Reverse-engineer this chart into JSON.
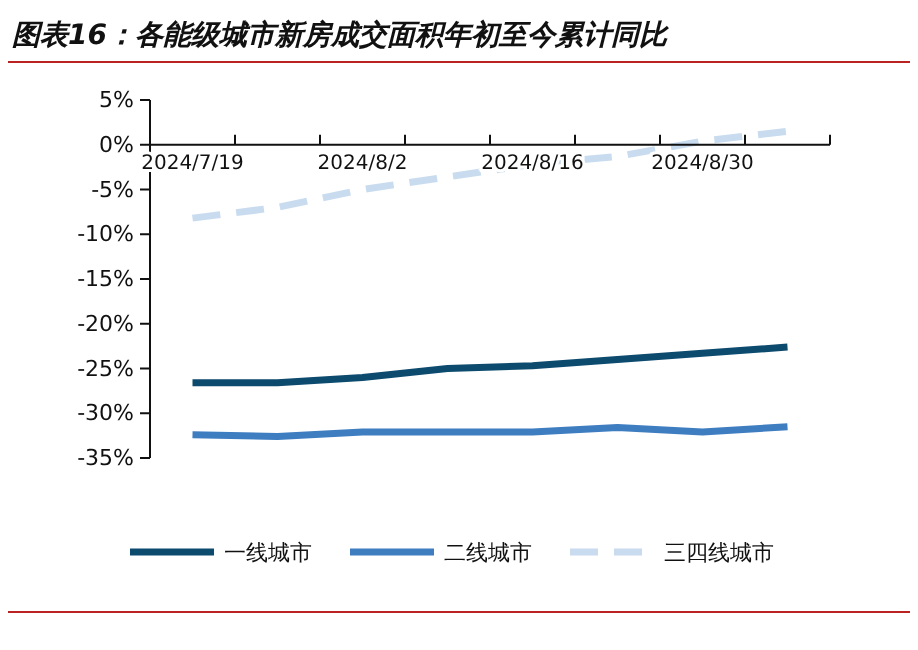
{
  "chart_data": {
    "type": "line",
    "title": "图表16：各能级城市新房成交面积年初至今累计同比",
    "categories": [
      "2024/7/19",
      null,
      "2024/8/2",
      null,
      "2024/8/16",
      null,
      "2024/8/30",
      null
    ],
    "series": [
      {
        "name": "一线城市",
        "color": "#0c4a6e",
        "line_style": "solid",
        "values": [
          -26.6,
          -26.6,
          -26.0,
          -25.0,
          -24.7,
          -24.0,
          -23.3,
          -22.6
        ]
      },
      {
        "name": "二线城市",
        "color": "#3f7dc1",
        "line_style": "solid",
        "values": [
          -32.4,
          -32.6,
          -32.1,
          -32.1,
          -32.1,
          -31.6,
          -32.1,
          -31.5
        ]
      },
      {
        "name": "三四线城市",
        "color": "#c9dcef",
        "line_style": "dashed",
        "values": [
          -8.2,
          -7.0,
          -5.0,
          -3.6,
          -2.2,
          -1.3,
          0.4,
          1.5
        ]
      }
    ],
    "ylim": [
      -35,
      5
    ],
    "yticks": [
      {
        "value": 5,
        "label": "5%"
      },
      {
        "value": 0,
        "label": "0%"
      },
      {
        "value": -5,
        "label": "-5%"
      },
      {
        "value": -10,
        "label": "-10%"
      },
      {
        "value": -15,
        "label": "-15%"
      },
      {
        "value": -20,
        "label": "-20%"
      },
      {
        "value": -25,
        "label": "-25%"
      },
      {
        "value": -30,
        "label": "-30%"
      },
      {
        "value": -35,
        "label": "-35%"
      }
    ],
    "grid": false,
    "legend": "bottom",
    "marker": "none"
  }
}
